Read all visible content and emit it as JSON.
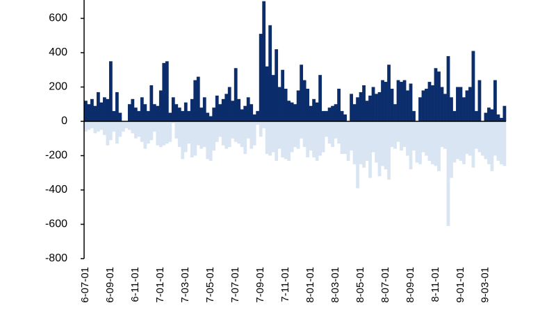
{
  "chart_data": {
    "type": "bar",
    "stacked": true,
    "categories": [
      "6-07-01",
      null,
      null,
      null,
      null,
      null,
      null,
      null,
      "6-09-01",
      null,
      null,
      null,
      null,
      null,
      null,
      null,
      "6-11-01",
      null,
      null,
      null,
      null,
      null,
      null,
      null,
      "7-01-01",
      null,
      null,
      null,
      null,
      null,
      null,
      null,
      "7-03-01",
      null,
      null,
      null,
      null,
      null,
      null,
      null,
      "7-05-01",
      null,
      null,
      null,
      null,
      null,
      null,
      null,
      "7-07-01",
      null,
      null,
      null,
      null,
      null,
      null,
      null,
      "7-09-01",
      null,
      null,
      null,
      null,
      null,
      null,
      null,
      "7-11-01",
      null,
      null,
      null,
      null,
      null,
      null,
      null,
      "8-01-01",
      null,
      null,
      null,
      null,
      null,
      null,
      null,
      "8-03-01",
      null,
      null,
      null,
      null,
      null,
      null,
      null,
      "8-05-01",
      null,
      null,
      null,
      null,
      null,
      null,
      null,
      "8-07-01",
      null,
      null,
      null,
      null,
      null,
      null,
      null,
      "8-09-01",
      null,
      null,
      null,
      null,
      null,
      null,
      null,
      "8-11-01",
      null,
      null,
      null,
      null,
      null,
      null,
      null,
      "9-01-01",
      null,
      null,
      null,
      null,
      null,
      null,
      null,
      "9-03-01",
      null,
      null,
      null,
      null,
      null,
      null
    ],
    "series": [
      {
        "color": "#0b2d6b",
        "values": [
          120,
          100,
          130,
          90,
          170,
          110,
          140,
          130,
          350,
          60,
          170,
          50,
          0,
          0,
          100,
          130,
          80,
          60,
          140,
          100,
          60,
          210,
          100,
          90,
          180,
          340,
          350,
          50,
          140,
          100,
          80,
          60,
          110,
          60,
          130,
          240,
          260,
          80,
          140,
          50,
          30,
          80,
          150,
          100,
          130,
          160,
          200,
          120,
          310,
          130,
          70,
          90,
          140,
          100,
          40,
          60,
          510,
          700,
          320,
          560,
          270,
          420,
          200,
          300,
          190,
          120,
          110,
          100,
          180,
          330,
          240,
          190,
          90,
          130,
          110,
          270,
          60,
          60,
          80,
          90,
          100,
          190,
          60,
          40,
          0,
          160,
          100,
          140,
          170,
          210,
          120,
          150,
          200,
          160,
          170,
          240,
          230,
          330,
          190,
          100,
          240,
          230,
          240,
          180,
          220,
          60,
          0,
          140,
          180,
          190,
          230,
          210,
          310,
          290,
          200,
          160,
          380,
          140,
          60,
          200,
          200,
          140,
          180,
          200,
          410,
          60,
          240,
          0,
          50,
          80,
          70,
          240,
          40,
          20,
          90
        ]
      },
      {
        "color": "#dae5f3",
        "values": [
          -60,
          -50,
          -40,
          -70,
          -60,
          -50,
          -80,
          -140,
          -110,
          -60,
          -130,
          -90,
          -60,
          -40,
          -50,
          -70,
          -100,
          -90,
          -120,
          -160,
          -130,
          -110,
          -60,
          -140,
          -150,
          -140,
          -130,
          -120,
          -10,
          -100,
          -150,
          -220,
          -180,
          -130,
          -210,
          -200,
          -140,
          -160,
          -150,
          -220,
          -230,
          -170,
          -120,
          -90,
          -140,
          -160,
          -150,
          -100,
          -120,
          -130,
          -150,
          -190,
          -100,
          -160,
          -140,
          -20,
          -90,
          -40,
          -190,
          -200,
          -180,
          -230,
          -160,
          -210,
          -220,
          -230,
          -180,
          -150,
          -160,
          -100,
          -150,
          -210,
          -170,
          -210,
          -230,
          -200,
          -180,
          -90,
          -130,
          -150,
          -100,
          -130,
          -190,
          -190,
          -230,
          -170,
          -250,
          -390,
          -250,
          -270,
          -230,
          -330,
          -180,
          -240,
          -320,
          -260,
          -280,
          -340,
          -150,
          -160,
          -120,
          -170,
          -150,
          -200,
          -280,
          -170,
          -240,
          -250,
          -180,
          -200,
          -230,
          -250,
          -260,
          -290,
          -150,
          -160,
          -610,
          -330,
          -240,
          -220,
          -230,
          -250,
          -190,
          -200,
          -270,
          -160,
          -180,
          -200,
          -220,
          -250,
          -290,
          -200,
          -230,
          -250,
          -260
        ]
      }
    ],
    "ylim": [
      -800,
      707
    ],
    "yticks": [
      -800,
      -600,
      -400,
      -200,
      0,
      200,
      400,
      600
    ]
  }
}
